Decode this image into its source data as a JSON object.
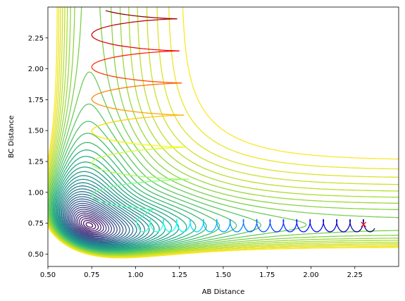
{
  "chart_data": {
    "type": "line",
    "subtype": "contour-with-trajectory",
    "title": "",
    "xlabel": "AB Distance",
    "ylabel": "BC Distance",
    "xlim": [
      0.5,
      2.5
    ],
    "ylim": [
      0.4,
      2.5
    ],
    "x_ticks": [
      "0.50",
      "0.75",
      "1.00",
      "1.25",
      "1.50",
      "1.75",
      "2.00",
      "2.25"
    ],
    "y_ticks": [
      "0.50",
      "0.75",
      "1.00",
      "1.25",
      "1.50",
      "1.75",
      "2.00",
      "2.25"
    ],
    "x_tick_values": [
      0.5,
      0.75,
      1.0,
      1.25,
      1.5,
      1.75,
      2.0,
      2.25
    ],
    "y_tick_values": [
      0.5,
      0.75,
      1.0,
      1.25,
      1.5,
      1.75,
      2.0,
      2.25
    ],
    "grid": false,
    "contour": {
      "colormap": "viridis",
      "level_count": 40,
      "well_min_ab": 0.74,
      "well_min_bc": 0.74,
      "saddle_ab": 0.95,
      "saddle_bc": 0.95
    },
    "trajectory": {
      "colormap": "jet",
      "start_marker": {
        "symbol": "x",
        "color": "#ff0000",
        "ab": 2.3,
        "bc": 0.74
      },
      "approach_start_ab": 2.35,
      "turn_ab": 0.75,
      "rebound_end_bc": 2.5,
      "vibration_period_ab": 0.038,
      "oscillation_bc": [
        0.68,
        0.78
      ]
    }
  }
}
